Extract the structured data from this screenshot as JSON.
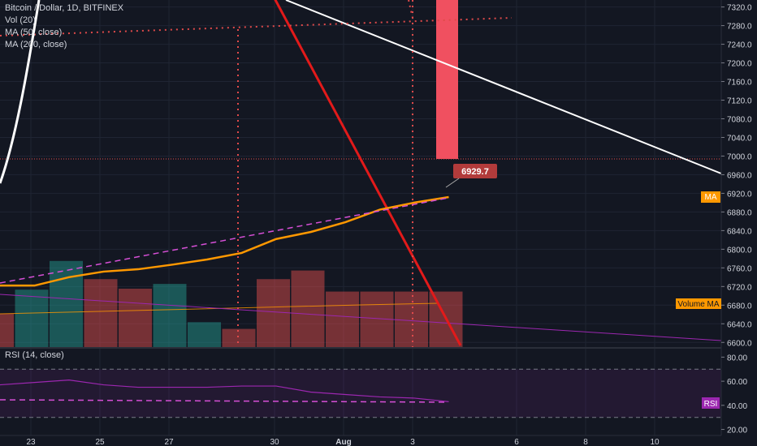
{
  "header": {
    "symbol": "Bitcoin / Dollar, 1D, BITFINEX",
    "indicators": [
      "Vol (20)",
      "MA (50, close)",
      "MA (200, close)"
    ]
  },
  "rsi_panel": {
    "label": "RSI (14, close)",
    "badge": "RSI"
  },
  "badges": {
    "price_label": "6929.7",
    "ma_label": "MA",
    "volume_ma_label": "Volume MA"
  },
  "colors": {
    "background": "#131722",
    "grid": "#1f2433",
    "up_volume": "#26a69a",
    "down_volume": "#ef5350",
    "ma_line": "#ff9800",
    "trend_red": "#e21a1a",
    "rsi_line": "#9c27b0",
    "price_badge": "#b23b3b",
    "highlight_bar": "#f05060"
  },
  "chart_data": [
    {
      "type": "line",
      "panel": "price",
      "y_axis_ticks": [
        7320,
        7280,
        7240,
        7200,
        7160,
        7120,
        7080,
        7040,
        7000,
        6960,
        6920,
        6880,
        6840,
        6800,
        6760,
        6720,
        6680,
        6640,
        6600
      ],
      "ylim": [
        6590,
        7335
      ],
      "x_axis_labels": [
        "23",
        "25",
        "27",
        "30",
        "Aug",
        "3",
        "6",
        "8",
        "10"
      ],
      "last_price": 6929.7,
      "series": [
        {
          "values": [
            6722,
            6722,
            6740,
            6752,
            6757,
            6767,
            6778,
            6792,
            6822,
            6837,
            6858,
            6885,
            6900,
            6912
          ]
        }
      ]
    },
    {
      "type": "bar",
      "panel": "volume",
      "values": [
        0.35,
        0.6,
        0.9,
        0.71,
        0.61,
        0.66,
        0.26,
        0.19,
        0.71,
        0.8,
        0.58,
        0.58,
        0.58,
        0.58
      ],
      "directions": [
        "down",
        "up",
        "up",
        "down",
        "down",
        "up",
        "up",
        "down",
        "down",
        "down",
        "down",
        "down",
        "down",
        "down"
      ]
    },
    {
      "type": "line",
      "panel": "rsi",
      "y_axis_ticks": [
        80,
        60,
        40,
        20
      ],
      "ylim": [
        15,
        87
      ],
      "upper_band": 70,
      "lower_band": 30,
      "values": [
        57,
        59,
        61,
        57,
        55,
        55,
        55,
        56,
        56,
        51,
        49,
        47,
        46,
        43
      ]
    }
  ]
}
